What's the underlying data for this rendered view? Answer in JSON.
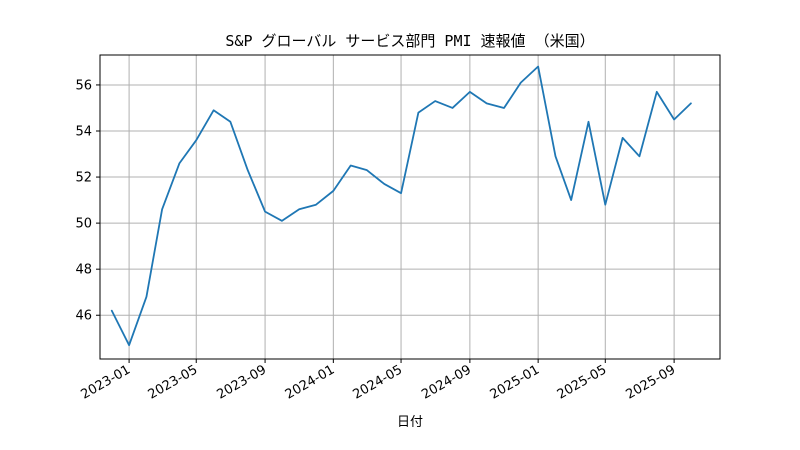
{
  "chart_data": {
    "type": "line",
    "title": "S&P グローバル サービス部門 PMI 速報値 （米国）",
    "xlabel": "日付",
    "ylabel": "",
    "grid": true,
    "line_color": "#1f77b4",
    "x_ticks": [
      "2023-01",
      "2023-05",
      "2023-09",
      "2024-01",
      "2024-05",
      "2024-09",
      "2025-01",
      "2025-05",
      "2025-09"
    ],
    "y_ticks": [
      46,
      48,
      50,
      52,
      54,
      56
    ],
    "ylim": [
      44.1,
      57.3
    ],
    "xlim": [
      "2022-11-10",
      "2025-11-22"
    ],
    "series": [
      {
        "x": [
          "2022-12-01",
          "2023-01-01",
          "2023-02-01",
          "2023-03-01",
          "2023-04-01",
          "2023-05-01",
          "2023-06-01",
          "2023-07-01",
          "2023-08-01",
          "2023-09-01",
          "2023-10-01",
          "2023-11-01",
          "2023-12-01",
          "2024-01-01",
          "2024-02-01",
          "2024-03-01",
          "2024-04-01",
          "2024-05-01",
          "2024-06-01",
          "2024-07-01",
          "2024-08-01",
          "2024-09-01",
          "2024-10-01",
          "2024-11-01",
          "2024-12-01",
          "2025-01-01",
          "2025-02-01",
          "2025-03-01",
          "2025-04-01",
          "2025-05-01",
          "2025-06-01",
          "2025-07-01",
          "2025-08-01",
          "2025-09-01",
          "2025-10-01"
        ],
        "values": [
          46.2,
          44.7,
          46.8,
          50.6,
          52.6,
          53.6,
          54.9,
          54.4,
          52.3,
          50.5,
          50.1,
          50.6,
          50.8,
          51.4,
          52.5,
          52.3,
          51.7,
          51.3,
          54.8,
          55.3,
          55.0,
          55.7,
          55.2,
          55.0,
          56.1,
          56.8,
          52.9,
          51.0,
          54.4,
          50.8,
          53.7,
          52.9,
          55.7,
          54.5,
          55.2
        ]
      }
    ]
  }
}
